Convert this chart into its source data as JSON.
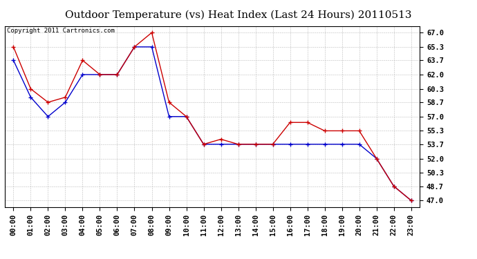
{
  "title": "Outdoor Temperature (vs) Heat Index (Last 24 Hours) 20110513",
  "copyright": "Copyright 2011 Cartronics.com",
  "x_labels": [
    "00:00",
    "01:00",
    "02:00",
    "03:00",
    "04:00",
    "05:00",
    "06:00",
    "07:00",
    "08:00",
    "09:00",
    "10:00",
    "11:00",
    "12:00",
    "13:00",
    "14:00",
    "15:00",
    "16:00",
    "17:00",
    "18:00",
    "19:00",
    "20:00",
    "21:00",
    "22:00",
    "23:00"
  ],
  "temp_data": [
    65.3,
    60.3,
    58.7,
    59.3,
    63.7,
    62.0,
    62.0,
    65.3,
    67.0,
    58.7,
    57.0,
    53.7,
    54.3,
    53.7,
    53.7,
    53.7,
    56.3,
    56.3,
    55.3,
    55.3,
    55.3,
    52.0,
    48.7,
    47.0
  ],
  "heat_data": [
    63.7,
    59.3,
    57.0,
    58.7,
    62.0,
    62.0,
    62.0,
    65.3,
    65.3,
    57.0,
    57.0,
    53.7,
    53.7,
    53.7,
    53.7,
    53.7,
    53.7,
    53.7,
    53.7,
    53.7,
    53.7,
    52.0,
    48.7,
    47.0
  ],
  "temp_color": "#cc0000",
  "heat_color": "#0000cc",
  "bg_color": "#ffffff",
  "grid_color": "#bbbbbb",
  "y_ticks": [
    47.0,
    48.7,
    50.3,
    52.0,
    53.7,
    55.3,
    57.0,
    58.7,
    60.3,
    62.0,
    63.7,
    65.3,
    67.0
  ],
  "ylim_min": 46.2,
  "ylim_max": 67.8,
  "title_fontsize": 11,
  "copyright_fontsize": 6.5,
  "tick_fontsize": 7.5,
  "marker": "+"
}
